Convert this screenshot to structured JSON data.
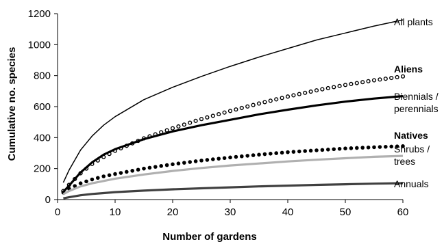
{
  "chart_data": {
    "type": "line",
    "xlabel": "Number of gardens",
    "ylabel": "Cumulative no. species",
    "xlim": [
      0,
      60
    ],
    "ylim": [
      0,
      1200
    ],
    "xticks": [
      "0",
      "10",
      "20",
      "30",
      "40",
      "50",
      "60"
    ],
    "yticks": [
      "0",
      "200",
      "400",
      "600",
      "800",
      "1000",
      "1200"
    ],
    "grid": false,
    "legend": "direct labels at right of each curve",
    "x": [
      1,
      2,
      4,
      6,
      8,
      10,
      15,
      20,
      25,
      30,
      35,
      40,
      45,
      50,
      55,
      60
    ],
    "series": [
      {
        "name": "All plants",
        "style": "solid-thin",
        "color": "#000000",
        "label_lines": [
          "All plants"
        ],
        "values": [
          110,
          190,
          320,
          410,
          480,
          535,
          645,
          725,
          795,
          860,
          920,
          975,
          1030,
          1075,
          1120,
          1160
        ]
      },
      {
        "name": "Aliens",
        "style": "open-dots",
        "color": "#000000",
        "label_lines": [
          "Aliens"
        ],
        "label_bold": true,
        "values": [
          55,
          95,
          170,
          230,
          275,
          315,
          395,
          460,
          520,
          572,
          620,
          665,
          705,
          740,
          770,
          795
        ]
      },
      {
        "name": "Biennials / perennials",
        "style": "solid-thick",
        "color": "#000000",
        "label_lines": [
          "Biennials /",
          "perennials"
        ],
        "values": [
          50,
          90,
          175,
          240,
          290,
          325,
          390,
          440,
          480,
          515,
          550,
          580,
          608,
          632,
          652,
          668
        ]
      },
      {
        "name": "Natives",
        "style": "filled-dots",
        "color": "#000000",
        "label_lines": [
          "Natives"
        ],
        "label_bold": true,
        "values": [
          45,
          70,
          105,
          130,
          150,
          165,
          200,
          228,
          252,
          272,
          290,
          306,
          318,
          330,
          338,
          345
        ]
      },
      {
        "name": "Shrubs / trees",
        "style": "solid-thick",
        "color": "#b0b0b0",
        "label_lines": [
          "Shrubs /",
          "trees"
        ],
        "values": [
          35,
          55,
          85,
          105,
          120,
          135,
          162,
          185,
          204,
          220,
          233,
          246,
          257,
          267,
          276,
          282
        ]
      },
      {
        "name": "Annuals",
        "style": "solid-thick",
        "color": "#404040",
        "label_lines": [
          "Annuals"
        ],
        "values": [
          8,
          15,
          28,
          36,
          42,
          48,
          58,
          66,
          73,
          79,
          85,
          90,
          95,
          99,
          103,
          106
        ]
      }
    ]
  }
}
